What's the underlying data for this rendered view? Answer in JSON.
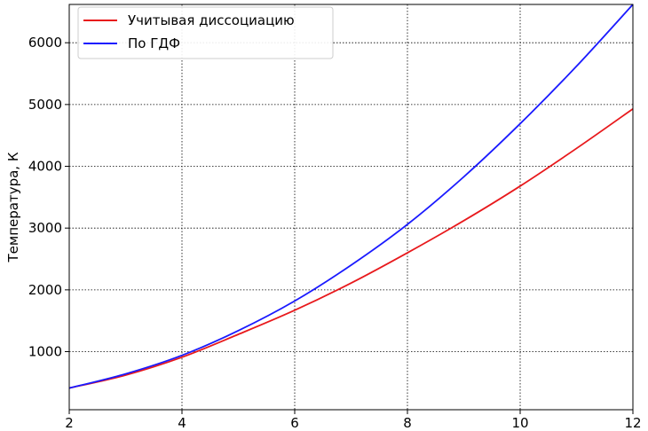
{
  "chart_data": {
    "type": "line",
    "title": "",
    "xlabel": "",
    "ylabel": "Температура, К",
    "xlim": [
      2,
      12
    ],
    "ylim": [
      60,
      6620
    ],
    "xticks": [
      2,
      4,
      6,
      8,
      10,
      12
    ],
    "yticks": [
      1000,
      2000,
      3000,
      4000,
      5000,
      6000
    ],
    "grid": true,
    "legend_position": "top-left",
    "series": [
      {
        "name": "Учитывая диссоциацию",
        "color": "#e8191c",
        "x": [
          2,
          3,
          4,
          5,
          6,
          7,
          8,
          9,
          10,
          11,
          12
        ],
        "y": [
          410,
          620,
          910,
          1280,
          1670,
          2110,
          2600,
          3120,
          3680,
          4290,
          4930
        ]
      },
      {
        "name": "По ГДФ",
        "color": "#1a1aff",
        "x": [
          2,
          3,
          4,
          5,
          6,
          7,
          8,
          9,
          10,
          11,
          12
        ],
        "y": [
          410,
          640,
          940,
          1340,
          1820,
          2400,
          3060,
          3830,
          4690,
          5620,
          6620
        ]
      }
    ]
  }
}
